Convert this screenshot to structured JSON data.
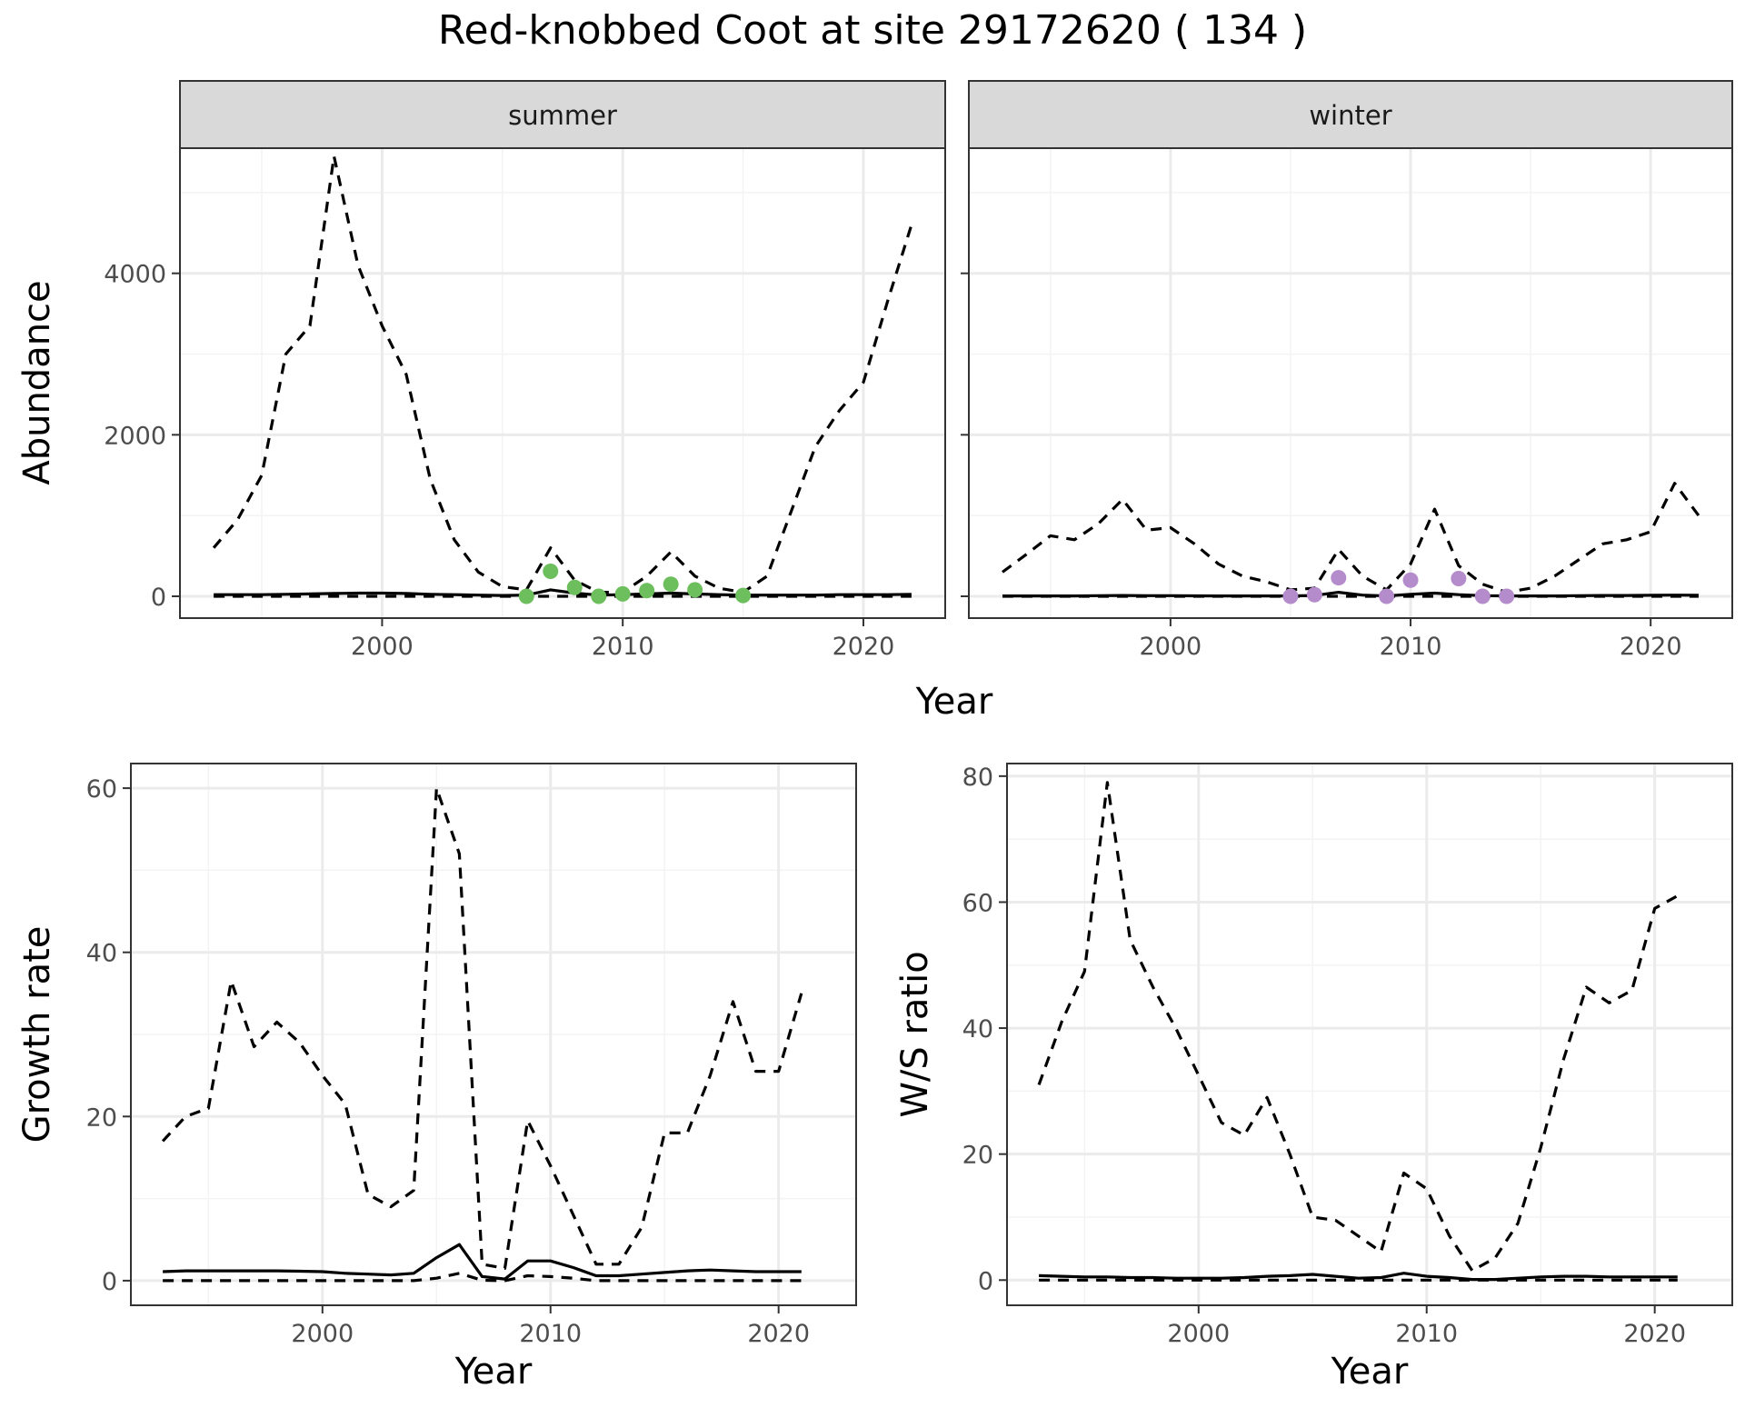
{
  "title": "Red-knobbed Coot at site 29172620 ( 134 )",
  "colors": {
    "summer_points": "#6dbe5c",
    "winter_points": "#b48bcb",
    "line": "#000000",
    "grid_major": "#ebebeb",
    "grid_minor": "#f3f3f3",
    "strip_bg": "#d9d9d9",
    "panel_border": "#333333"
  },
  "chart_data": [
    {
      "type": "line",
      "panel": "summer",
      "strip_label": "summer",
      "xlabel": "Year",
      "ylabel": "Abundance",
      "xlim": [
        1991.6,
        2023.4
      ],
      "ylim": [
        -270,
        5550
      ],
      "x_ticks": [
        2000,
        2010,
        2020
      ],
      "y_ticks": [
        0,
        2000,
        4000
      ],
      "grid": true,
      "series": [
        {
          "style": "dashed",
          "x": [
            1993,
            1994,
            1995,
            1996,
            1997,
            1998,
            1999,
            2000,
            2001,
            2002,
            2003,
            2004,
            2005,
            2006,
            2007,
            2008,
            2009,
            2010,
            2011,
            2012,
            2013,
            2014,
            2015,
            2016,
            2017,
            2018,
            2019,
            2020,
            2021,
            2022
          ],
          "y": [
            600,
            950,
            1500,
            3000,
            3350,
            5450,
            4100,
            3350,
            2750,
            1450,
            700,
            300,
            120,
            80,
            600,
            200,
            50,
            50,
            250,
            550,
            250,
            100,
            50,
            250,
            1050,
            1850,
            2300,
            2650,
            3650,
            4600
          ]
        },
        {
          "style": "solid",
          "x": [
            1993,
            1994,
            1995,
            1996,
            1997,
            1998,
            1999,
            2000,
            2001,
            2002,
            2003,
            2004,
            2005,
            2006,
            2007,
            2008,
            2009,
            2010,
            2011,
            2012,
            2013,
            2014,
            2015,
            2016,
            2017,
            2018,
            2019,
            2020,
            2021,
            2022
          ],
          "y": [
            20,
            20,
            20,
            25,
            30,
            35,
            40,
            40,
            35,
            25,
            20,
            15,
            10,
            15,
            80,
            40,
            15,
            20,
            30,
            40,
            30,
            20,
            15,
            15,
            15,
            15,
            20,
            20,
            20,
            25
          ]
        },
        {
          "style": "dashed",
          "x": [
            1993,
            1994,
            1995,
            1996,
            1997,
            1998,
            1999,
            2000,
            2001,
            2002,
            2003,
            2004,
            2005,
            2006,
            2007,
            2008,
            2009,
            2010,
            2011,
            2012,
            2013,
            2014,
            2015,
            2016,
            2017,
            2018,
            2019,
            2020,
            2021,
            2022
          ],
          "y": [
            0,
            0,
            0,
            0,
            0,
            0,
            0,
            0,
            0,
            0,
            0,
            0,
            0,
            0,
            0,
            0,
            0,
            0,
            0,
            0,
            0,
            0,
            0,
            0,
            0,
            0,
            0,
            0,
            0,
            0
          ]
        }
      ],
      "points": {
        "x": [
          2006,
          2007,
          2008,
          2009,
          2010,
          2011,
          2012,
          2013,
          2015
        ],
        "y": [
          0,
          310,
          110,
          0,
          30,
          70,
          150,
          80,
          10
        ]
      }
    },
    {
      "type": "line",
      "panel": "winter",
      "strip_label": "winter",
      "xlabel": "Year",
      "ylabel": "Abundance",
      "xlim": [
        1991.6,
        2023.4
      ],
      "ylim": [
        -270,
        5550
      ],
      "x_ticks": [
        2000,
        2010,
        2020
      ],
      "y_ticks": [
        0,
        2000,
        4000
      ],
      "grid": true,
      "series": [
        {
          "style": "dashed",
          "x": [
            1993,
            1994,
            1995,
            1996,
            1997,
            1998,
            1999,
            2000,
            2001,
            2002,
            2003,
            2004,
            2005,
            2006,
            2007,
            2008,
            2009,
            2010,
            2011,
            2012,
            2013,
            2014,
            2015,
            2016,
            2017,
            2018,
            2019,
            2020,
            2021,
            2022
          ],
          "y": [
            300,
            520,
            750,
            700,
            900,
            1200,
            820,
            850,
            650,
            400,
            250,
            180,
            80,
            100,
            580,
            250,
            80,
            400,
            1080,
            380,
            150,
            50,
            100,
            250,
            450,
            650,
            700,
            800,
            1400,
            1000
          ]
        },
        {
          "style": "solid",
          "x": [
            1993,
            1994,
            1995,
            1996,
            1997,
            1998,
            1999,
            2000,
            2001,
            2002,
            2003,
            2004,
            2005,
            2006,
            2007,
            2008,
            2009,
            2010,
            2011,
            2012,
            2013,
            2014,
            2015,
            2016,
            2017,
            2018,
            2019,
            2020,
            2021,
            2022
          ],
          "y": [
            5,
            5,
            5,
            5,
            8,
            10,
            8,
            8,
            6,
            5,
            5,
            5,
            5,
            10,
            50,
            15,
            5,
            25,
            40,
            20,
            8,
            5,
            5,
            5,
            8,
            10,
            10,
            12,
            15,
            12
          ]
        },
        {
          "style": "dashed",
          "x": [
            1993,
            1994,
            1995,
            1996,
            1997,
            1998,
            1999,
            2000,
            2001,
            2002,
            2003,
            2004,
            2005,
            2006,
            2007,
            2008,
            2009,
            2010,
            2011,
            2012,
            2013,
            2014,
            2015,
            2016,
            2017,
            2018,
            2019,
            2020,
            2021,
            2022
          ],
          "y": [
            0,
            0,
            0,
            0,
            0,
            0,
            0,
            0,
            0,
            0,
            0,
            0,
            0,
            0,
            0,
            0,
            0,
            0,
            0,
            0,
            0,
            0,
            0,
            0,
            0,
            0,
            0,
            0,
            0,
            0
          ]
        }
      ],
      "points": {
        "x": [
          2005,
          2006,
          2007,
          2009,
          2010,
          2012,
          2013,
          2014
        ],
        "y": [
          0,
          20,
          230,
          0,
          200,
          220,
          0,
          0
        ]
      }
    },
    {
      "type": "line",
      "panel": "growth",
      "xlabel": "Year",
      "ylabel": "Growth rate",
      "xlim": [
        1991.6,
        2023.4
      ],
      "ylim": [
        -3,
        63
      ],
      "x_ticks": [
        2000,
        2010,
        2020
      ],
      "y_ticks": [
        0,
        20,
        40,
        60
      ],
      "grid": true,
      "series": [
        {
          "style": "dashed",
          "x": [
            1993,
            1994,
            1995,
            1996,
            1997,
            1998,
            1999,
            2000,
            2001,
            2002,
            2003,
            2004,
            2005,
            2006,
            2007,
            2008,
            2009,
            2010,
            2011,
            2012,
            2013,
            2014,
            2015,
            2016,
            2017,
            2018,
            2019,
            2020,
            2021
          ],
          "y": [
            17,
            20,
            21,
            36.5,
            28.5,
            31.5,
            29,
            25,
            21.5,
            10.5,
            9,
            11,
            60,
            52,
            2,
            1.5,
            19.5,
            14,
            8,
            2,
            2,
            6.5,
            18,
            18,
            25,
            34,
            25.5,
            25.5,
            35
          ]
        },
        {
          "style": "solid",
          "x": [
            1993,
            1994,
            1995,
            1996,
            1997,
            1998,
            1999,
            2000,
            2001,
            2002,
            2003,
            2004,
            2005,
            2006,
            2007,
            2008,
            2009,
            2010,
            2011,
            2012,
            2013,
            2014,
            2015,
            2016,
            2017,
            2018,
            2019,
            2020,
            2021
          ],
          "y": [
            1.1,
            1.2,
            1.2,
            1.2,
            1.2,
            1.2,
            1.15,
            1.1,
            0.9,
            0.8,
            0.7,
            0.9,
            2.8,
            4.4,
            0.5,
            0.2,
            2.4,
            2.4,
            1.6,
            0.6,
            0.6,
            0.8,
            1.0,
            1.2,
            1.3,
            1.2,
            1.1,
            1.1,
            1.1
          ]
        },
        {
          "style": "dashed",
          "x": [
            1993,
            1994,
            1995,
            1996,
            1997,
            1998,
            1999,
            2000,
            2001,
            2002,
            2003,
            2004,
            2005,
            2006,
            2007,
            2008,
            2009,
            2010,
            2011,
            2012,
            2013,
            2014,
            2015,
            2016,
            2017,
            2018,
            2019,
            2020,
            2021
          ],
          "y": [
            0,
            0,
            0,
            0,
            0,
            0,
            0,
            0,
            0,
            0,
            0,
            0,
            0.3,
            0.9,
            0.05,
            0,
            0.6,
            0.5,
            0.3,
            0,
            0,
            0,
            0,
            0,
            0,
            0,
            0,
            0,
            0
          ]
        }
      ]
    },
    {
      "type": "line",
      "panel": "ws_ratio",
      "xlabel": "Year",
      "ylabel": "W/S ratio",
      "xlim": [
        1991.6,
        2023.4
      ],
      "ylim": [
        -4,
        82
      ],
      "x_ticks": [
        2000,
        2010,
        2020
      ],
      "y_ticks": [
        0,
        20,
        40,
        60,
        80
      ],
      "grid": true,
      "series": [
        {
          "style": "dashed",
          "x": [
            1993,
            1994,
            1995,
            1996,
            1997,
            1998,
            1999,
            2000,
            2001,
            2002,
            2003,
            2004,
            2005,
            2006,
            2007,
            2008,
            2009,
            2010,
            2011,
            2012,
            2013,
            2014,
            2015,
            2016,
            2017,
            2018,
            2019,
            2020,
            2021
          ],
          "y": [
            31,
            41,
            49,
            79,
            54,
            46.5,
            40,
            32.5,
            25,
            23,
            29,
            20,
            10,
            9.5,
            7,
            4.5,
            17,
            14.5,
            7,
            1.5,
            3.5,
            9,
            21,
            35,
            46.5,
            44,
            46,
            59,
            61
          ]
        },
        {
          "style": "solid",
          "x": [
            1993,
            1994,
            1995,
            1996,
            1997,
            1998,
            1999,
            2000,
            2001,
            2002,
            2003,
            2004,
            2005,
            2006,
            2007,
            2008,
            2009,
            2010,
            2011,
            2012,
            2013,
            2014,
            2015,
            2016,
            2017,
            2018,
            2019,
            2020,
            2021
          ],
          "y": [
            0.7,
            0.6,
            0.5,
            0.5,
            0.4,
            0.4,
            0.3,
            0.3,
            0.3,
            0.4,
            0.6,
            0.7,
            0.9,
            0.6,
            0.3,
            0.4,
            1.1,
            0.6,
            0.4,
            0.1,
            0.1,
            0.3,
            0.5,
            0.6,
            0.6,
            0.5,
            0.5,
            0.5,
            0.5
          ]
        },
        {
          "style": "dashed",
          "x": [
            1993,
            1994,
            1995,
            1996,
            1997,
            1998,
            1999,
            2000,
            2001,
            2002,
            2003,
            2004,
            2005,
            2006,
            2007,
            2008,
            2009,
            2010,
            2011,
            2012,
            2013,
            2014,
            2015,
            2016,
            2017,
            2018,
            2019,
            2020,
            2021
          ],
          "y": [
            0,
            0,
            0,
            0,
            0,
            0,
            0,
            0,
            0,
            0,
            0,
            0,
            0,
            0,
            0,
            0,
            0,
            0,
            0,
            0,
            0,
            0,
            0,
            0,
            0,
            0,
            0,
            0,
            0
          ]
        }
      ]
    }
  ]
}
